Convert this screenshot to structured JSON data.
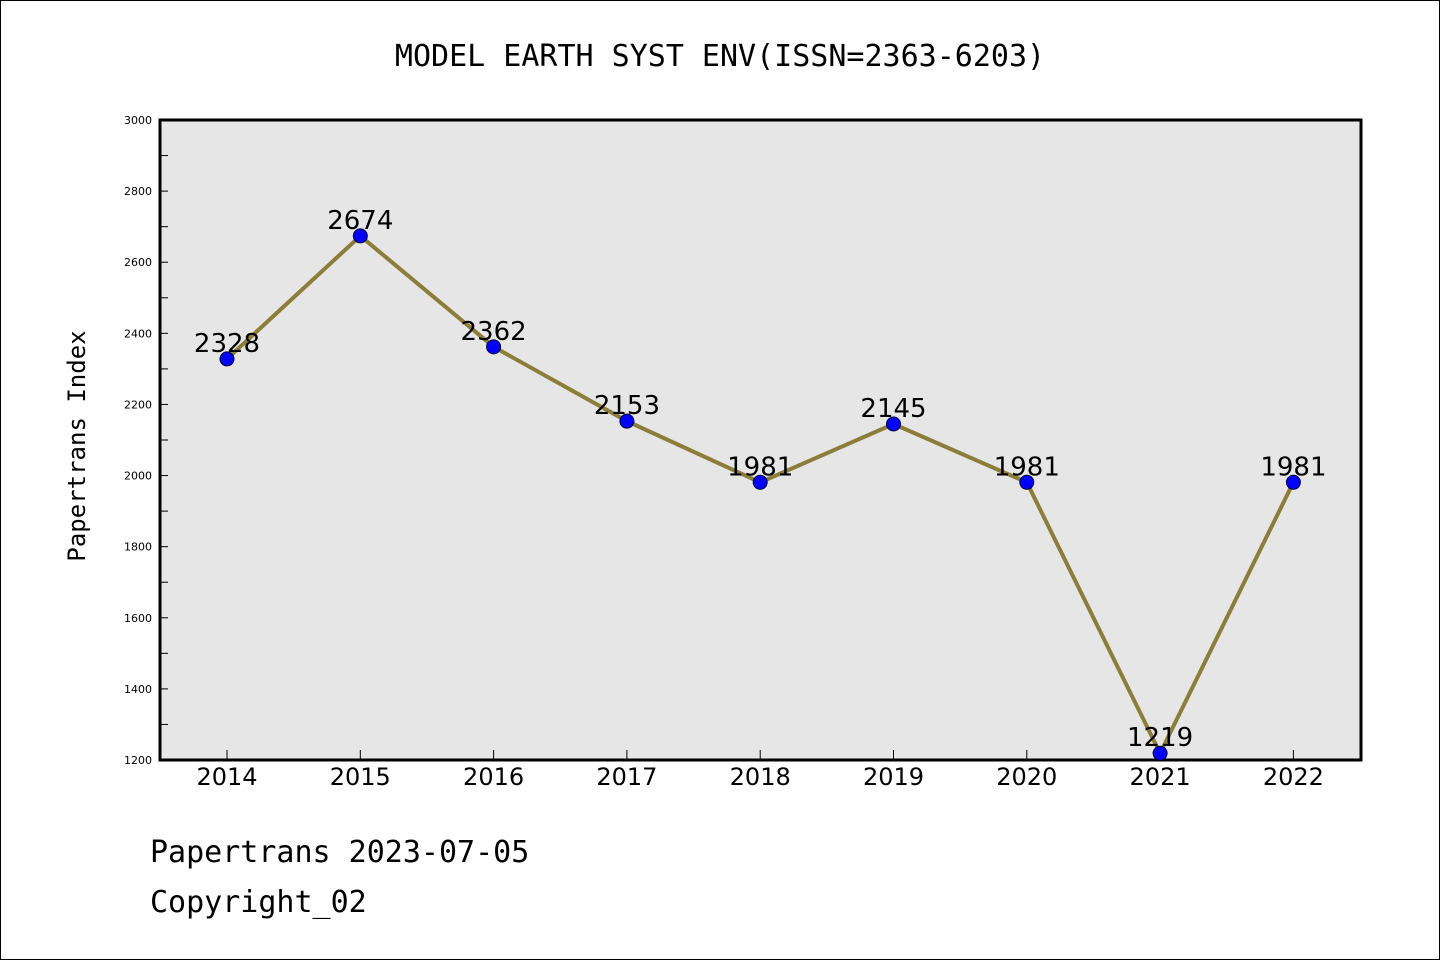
{
  "chart_data": {
    "type": "line",
    "title": "MODEL EARTH SYST ENV(ISSN=2363-6203)",
    "xlabel": "",
    "ylabel": "Papertrans Index",
    "categories": [
      "2014",
      "2015",
      "2016",
      "2017",
      "2018",
      "2019",
      "2020",
      "2021",
      "2022"
    ],
    "series": [
      {
        "values": [
          2328,
          2674,
          2362,
          2153,
          1981,
          2145,
          1981,
          1219,
          1981
        ]
      }
    ],
    "ylim": [
      1200,
      3000
    ],
    "yticks": [
      1200,
      1400,
      1600,
      1800,
      2000,
      2200,
      2400,
      2600,
      2800,
      3000
    ],
    "grid": false,
    "colors": {
      "line": "#8B7D3A",
      "marker": "#0000FF",
      "plot_background": "#E6E6E6"
    }
  },
  "footer": {
    "line1": "Papertrans 2023-07-05",
    "line2": "Copyright_02"
  }
}
